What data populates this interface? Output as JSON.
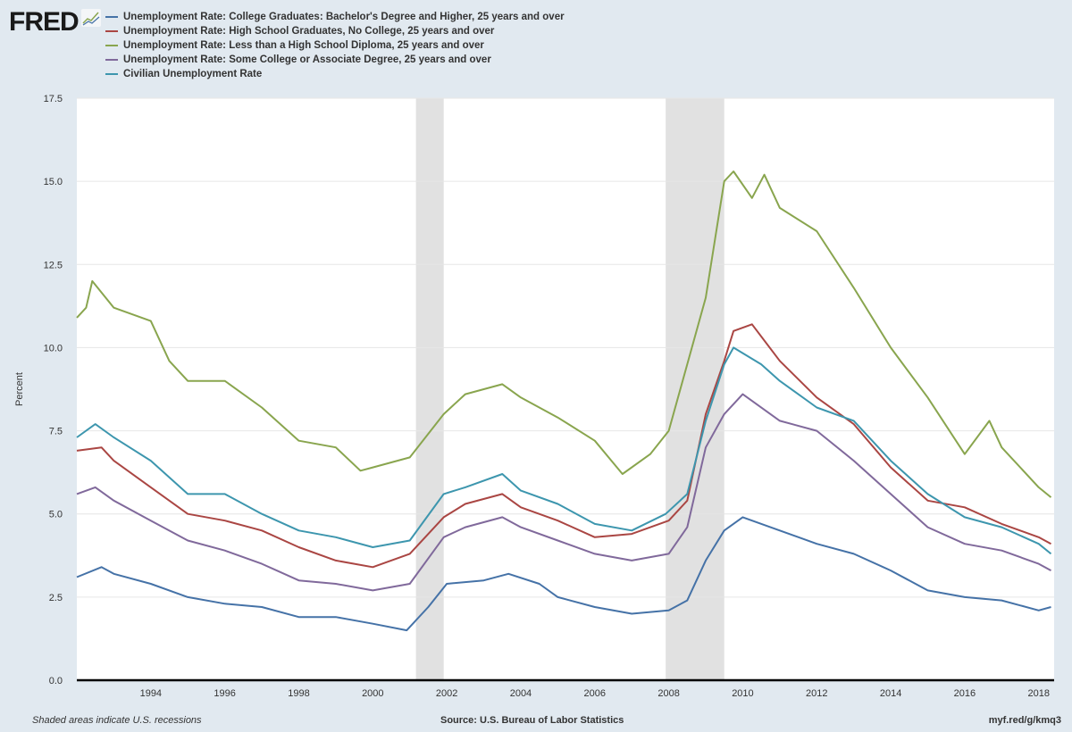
{
  "logo": {
    "text": "FRED"
  },
  "footer": {
    "recession_note": "Shaded areas indicate U.S. recessions",
    "source": "Source: U.S. Bureau of Labor Statistics",
    "link": "myf.red/g/kmq3"
  },
  "chart_data": {
    "type": "line",
    "title": "",
    "xlabel": "",
    "ylabel": "Percent",
    "xlim": [
      "1992-01",
      "2018-05"
    ],
    "ylim": [
      0,
      17.5
    ],
    "grid": true,
    "legend_position": "top-left",
    "x_ticks": [
      "1994",
      "1996",
      "1998",
      "2000",
      "2002",
      "2004",
      "2006",
      "2008",
      "2010",
      "2012",
      "2014",
      "2016",
      "2018"
    ],
    "y_ticks": [
      "0.0",
      "2.5",
      "5.0",
      "7.5",
      "10.0",
      "12.5",
      "15.0",
      "17.5"
    ],
    "recessions": [
      [
        "2001-03",
        "2001-11"
      ],
      [
        "2007-12",
        "2009-06"
      ]
    ],
    "recession_color": "#e1e1e1",
    "series": [
      {
        "name": "Unemployment Rate: College Graduates: Bachelor's Degree and Higher, 25 years and over",
        "color": "#4572a7",
        "points": [
          [
            "1992-01",
            3.1
          ],
          [
            "1992-09",
            3.4
          ],
          [
            "1993-01",
            3.2
          ],
          [
            "1994-01",
            2.9
          ],
          [
            "1995-01",
            2.5
          ],
          [
            "1996-01",
            2.3
          ],
          [
            "1997-01",
            2.2
          ],
          [
            "1998-01",
            1.9
          ],
          [
            "1999-01",
            1.9
          ],
          [
            "2000-01",
            1.7
          ],
          [
            "2000-12",
            1.5
          ],
          [
            "2001-07",
            2.2
          ],
          [
            "2002-01",
            2.9
          ],
          [
            "2003-01",
            3.0
          ],
          [
            "2003-09",
            3.2
          ],
          [
            "2004-07",
            2.9
          ],
          [
            "2005-01",
            2.5
          ],
          [
            "2006-01",
            2.2
          ],
          [
            "2007-01",
            2.0
          ],
          [
            "2008-01",
            2.1
          ],
          [
            "2008-07",
            2.4
          ],
          [
            "2009-01",
            3.6
          ],
          [
            "2009-07",
            4.5
          ],
          [
            "2010-01",
            4.9
          ],
          [
            "2011-01",
            4.5
          ],
          [
            "2012-01",
            4.1
          ],
          [
            "2013-01",
            3.8
          ],
          [
            "2014-01",
            3.3
          ],
          [
            "2015-01",
            2.7
          ],
          [
            "2016-01",
            2.5
          ],
          [
            "2017-01",
            2.4
          ],
          [
            "2018-01",
            2.1
          ],
          [
            "2018-05",
            2.2
          ]
        ]
      },
      {
        "name": "Unemployment Rate: High School Graduates, No College, 25 years and over",
        "color": "#aa4643",
        "points": [
          [
            "1992-01",
            6.9
          ],
          [
            "1992-09",
            7.0
          ],
          [
            "1993-01",
            6.6
          ],
          [
            "1994-01",
            5.8
          ],
          [
            "1995-01",
            5.0
          ],
          [
            "1996-01",
            4.8
          ],
          [
            "1997-01",
            4.5
          ],
          [
            "1998-01",
            4.0
          ],
          [
            "1999-01",
            3.6
          ],
          [
            "2000-01",
            3.4
          ],
          [
            "2001-01",
            3.8
          ],
          [
            "2001-12",
            4.9
          ],
          [
            "2002-07",
            5.3
          ],
          [
            "2003-07",
            5.6
          ],
          [
            "2004-01",
            5.2
          ],
          [
            "2005-01",
            4.8
          ],
          [
            "2006-01",
            4.3
          ],
          [
            "2007-01",
            4.4
          ],
          [
            "2008-01",
            4.8
          ],
          [
            "2008-07",
            5.4
          ],
          [
            "2009-01",
            8.0
          ],
          [
            "2009-07",
            9.6
          ],
          [
            "2009-10",
            10.5
          ],
          [
            "2010-04",
            10.7
          ],
          [
            "2011-01",
            9.6
          ],
          [
            "2012-01",
            8.5
          ],
          [
            "2013-01",
            7.7
          ],
          [
            "2014-01",
            6.4
          ],
          [
            "2015-01",
            5.4
          ],
          [
            "2016-01",
            5.2
          ],
          [
            "2017-01",
            4.7
          ],
          [
            "2018-01",
            4.3
          ],
          [
            "2018-05",
            4.1
          ]
        ]
      },
      {
        "name": "Unemployment Rate: Less than a High School Diploma, 25 years and over",
        "color": "#89a54e",
        "points": [
          [
            "1992-01",
            10.9
          ],
          [
            "1992-04",
            11.2
          ],
          [
            "1992-06",
            12.0
          ],
          [
            "1993-01",
            11.2
          ],
          [
            "1994-01",
            10.8
          ],
          [
            "1994-07",
            9.6
          ],
          [
            "1995-01",
            9.0
          ],
          [
            "1996-01",
            9.0
          ],
          [
            "1997-01",
            8.2
          ],
          [
            "1998-01",
            7.2
          ],
          [
            "1999-01",
            7.0
          ],
          [
            "1999-09",
            6.3
          ],
          [
            "2000-01",
            6.4
          ],
          [
            "2001-01",
            6.7
          ],
          [
            "2001-12",
            8.0
          ],
          [
            "2002-07",
            8.6
          ],
          [
            "2003-07",
            8.9
          ],
          [
            "2004-01",
            8.5
          ],
          [
            "2005-01",
            7.9
          ],
          [
            "2006-01",
            7.2
          ],
          [
            "2006-10",
            6.2
          ],
          [
            "2007-07",
            6.8
          ],
          [
            "2008-01",
            7.5
          ],
          [
            "2008-07",
            9.5
          ],
          [
            "2009-01",
            11.5
          ],
          [
            "2009-07",
            15.0
          ],
          [
            "2009-10",
            15.3
          ],
          [
            "2010-04",
            14.5
          ],
          [
            "2010-08",
            15.2
          ],
          [
            "2011-01",
            14.2
          ],
          [
            "2012-01",
            13.5
          ],
          [
            "2013-01",
            11.8
          ],
          [
            "2014-01",
            10.0
          ],
          [
            "2015-01",
            8.5
          ],
          [
            "2016-01",
            6.8
          ],
          [
            "2016-09",
            7.8
          ],
          [
            "2017-01",
            7.0
          ],
          [
            "2018-01",
            5.8
          ],
          [
            "2018-05",
            5.5
          ]
        ]
      },
      {
        "name": "Unemployment Rate: Some College or Associate Degree, 25 years and over",
        "color": "#80699b",
        "points": [
          [
            "1992-01",
            5.6
          ],
          [
            "1992-07",
            5.8
          ],
          [
            "1993-01",
            5.4
          ],
          [
            "1994-01",
            4.8
          ],
          [
            "1995-01",
            4.2
          ],
          [
            "1996-01",
            3.9
          ],
          [
            "1997-01",
            3.5
          ],
          [
            "1998-01",
            3.0
          ],
          [
            "1999-01",
            2.9
          ],
          [
            "2000-01",
            2.7
          ],
          [
            "2001-01",
            2.9
          ],
          [
            "2001-12",
            4.3
          ],
          [
            "2002-07",
            4.6
          ],
          [
            "2003-07",
            4.9
          ],
          [
            "2004-01",
            4.6
          ],
          [
            "2005-01",
            4.2
          ],
          [
            "2006-01",
            3.8
          ],
          [
            "2007-01",
            3.6
          ],
          [
            "2008-01",
            3.8
          ],
          [
            "2008-07",
            4.6
          ],
          [
            "2009-01",
            7.0
          ],
          [
            "2009-07",
            8.0
          ],
          [
            "2010-01",
            8.6
          ],
          [
            "2011-01",
            7.8
          ],
          [
            "2012-01",
            7.5
          ],
          [
            "2013-01",
            6.6
          ],
          [
            "2014-01",
            5.6
          ],
          [
            "2015-01",
            4.6
          ],
          [
            "2016-01",
            4.1
          ],
          [
            "2017-01",
            3.9
          ],
          [
            "2018-01",
            3.5
          ],
          [
            "2018-05",
            3.3
          ]
        ]
      },
      {
        "name": "Civilian Unemployment Rate",
        "color": "#3d96ae",
        "points": [
          [
            "1992-01",
            7.3
          ],
          [
            "1992-07",
            7.7
          ],
          [
            "1993-01",
            7.3
          ],
          [
            "1994-01",
            6.6
          ],
          [
            "1995-01",
            5.6
          ],
          [
            "1996-01",
            5.6
          ],
          [
            "1997-01",
            5.0
          ],
          [
            "1998-01",
            4.5
          ],
          [
            "1999-01",
            4.3
          ],
          [
            "2000-01",
            4.0
          ],
          [
            "2001-01",
            4.2
          ],
          [
            "2001-12",
            5.6
          ],
          [
            "2002-07",
            5.8
          ],
          [
            "2003-07",
            6.2
          ],
          [
            "2004-01",
            5.7
          ],
          [
            "2005-01",
            5.3
          ],
          [
            "2006-01",
            4.7
          ],
          [
            "2007-01",
            4.5
          ],
          [
            "2007-12",
            5.0
          ],
          [
            "2008-07",
            5.6
          ],
          [
            "2009-01",
            7.8
          ],
          [
            "2009-07",
            9.5
          ],
          [
            "2009-10",
            10.0
          ],
          [
            "2010-07",
            9.5
          ],
          [
            "2011-01",
            9.0
          ],
          [
            "2012-01",
            8.2
          ],
          [
            "2013-01",
            7.8
          ],
          [
            "2014-01",
            6.6
          ],
          [
            "2015-01",
            5.6
          ],
          [
            "2016-01",
            4.9
          ],
          [
            "2017-01",
            4.6
          ],
          [
            "2018-01",
            4.1
          ],
          [
            "2018-05",
            3.8
          ]
        ]
      }
    ]
  }
}
